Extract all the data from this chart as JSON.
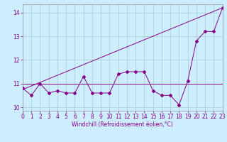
{
  "x": [
    0,
    1,
    2,
    3,
    4,
    5,
    6,
    7,
    8,
    9,
    10,
    11,
    12,
    13,
    14,
    15,
    16,
    17,
    18,
    19,
    20,
    21,
    22,
    23
  ],
  "y_data": [
    10.8,
    10.5,
    11.0,
    10.6,
    10.7,
    10.6,
    10.6,
    11.3,
    10.6,
    10.6,
    10.6,
    11.4,
    11.5,
    11.5,
    11.5,
    10.7,
    10.5,
    10.5,
    10.1,
    11.1,
    12.8,
    13.2,
    13.2,
    14.2
  ],
  "y_linear_start": 10.75,
  "y_linear_end": 14.2,
  "y_horizontal": 11.0,
  "ylim": [
    9.85,
    14.35
  ],
  "xlim": [
    0,
    23
  ],
  "yticks": [
    10,
    11,
    12,
    13,
    14
  ],
  "xticks": [
    0,
    1,
    2,
    3,
    4,
    5,
    6,
    7,
    8,
    9,
    10,
    11,
    12,
    13,
    14,
    15,
    16,
    17,
    18,
    19,
    20,
    21,
    22,
    23
  ],
  "line_color": "#880088",
  "bg_color": "#cceeff",
  "grid_color": "#aacccc",
  "xlabel": "Windchill (Refroidissement éolien,°C)",
  "marker": "D",
  "marker_size": 2.0,
  "linewidth": 0.7,
  "tick_labelsize": 5.5,
  "xlabel_fontsize": 5.5
}
